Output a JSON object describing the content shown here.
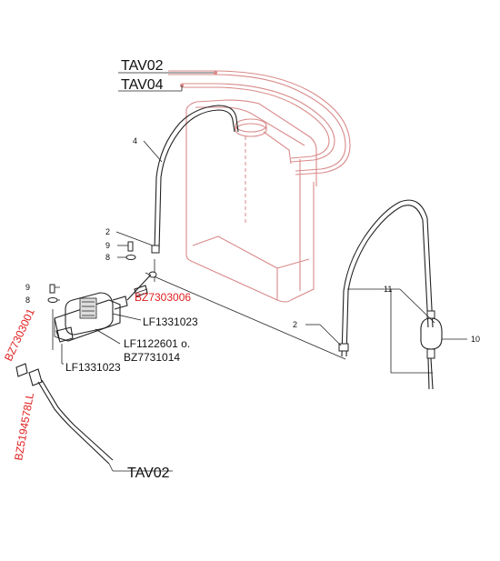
{
  "labels": {
    "tav02_top": "TAV02",
    "tav04": "TAV04",
    "tav02_bottom": "TAV02",
    "n4": "4",
    "n2_left": "2",
    "n9_a": "9",
    "n8_a": "8",
    "n9_b": "9",
    "n8_b": "8",
    "n2_right": "2",
    "n11": "11",
    "n10": "10"
  },
  "parts": {
    "bz7303006": "BZ7303006",
    "lf1331023_a": "LF1331023",
    "lf1122601": "LF1122601 o.",
    "bz7731014": "BZ7731014",
    "lf1331023_b": "LF1331023",
    "bz7303001": "BZ7303001",
    "bz5194578ll": "BZ5194578LL"
  },
  "colors": {
    "part_number": "#e02020",
    "tank_outline": "#d98a8a",
    "line": "#222222"
  }
}
